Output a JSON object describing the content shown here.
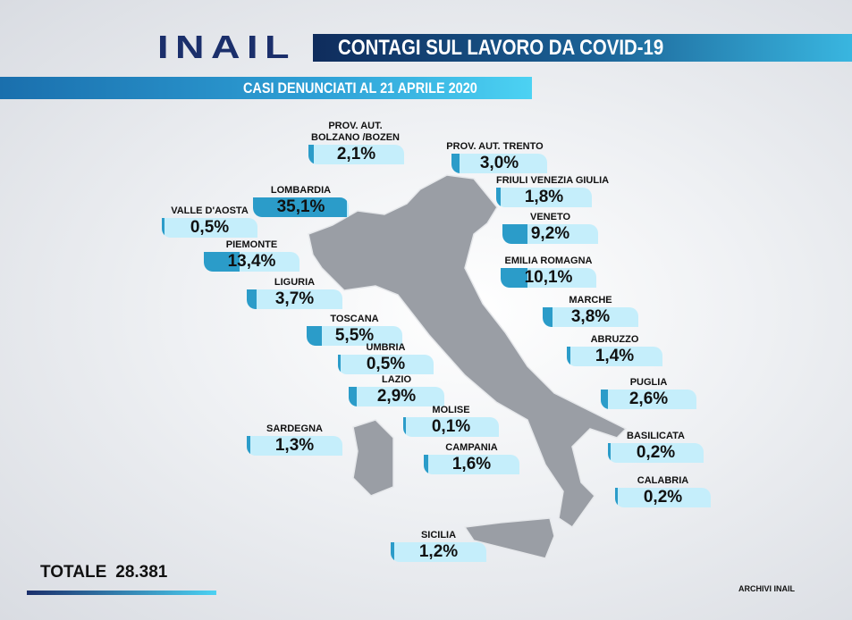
{
  "header": {
    "logo": "INAIL",
    "title": "CONTAGI SUL LAVORO DA COVID-19",
    "subtitle": "CASI DENUNCIATI AL 21 APRILE 2020"
  },
  "colors": {
    "pill": "#c5eefb",
    "pill_fill": "#2b9cc9",
    "title_dark": "#0f2c5c",
    "title_light": "#39b6e0",
    "map": "#9a9ea5"
  },
  "regions": [
    {
      "name": "PROV. AUT. BOLZANO /BOZEN",
      "value": "2,1%",
      "pct": 2.1
    },
    {
      "name": "PROV. AUT. TRENTO",
      "value": "3,0%",
      "pct": 3.0
    },
    {
      "name": "FRIULI VENEZIA GIULIA",
      "value": "1,8%",
      "pct": 1.8
    },
    {
      "name": "LOMBARDIA",
      "value": "35,1%",
      "pct": 35.1
    },
    {
      "name": "VALLE D'AOSTA",
      "value": "0,5%",
      "pct": 0.5
    },
    {
      "name": "VENETO",
      "value": "9,2%",
      "pct": 9.2
    },
    {
      "name": "PIEMONTE",
      "value": "13,4%",
      "pct": 13.4
    },
    {
      "name": "EMILIA ROMAGNA",
      "value": "10,1%",
      "pct": 10.1
    },
    {
      "name": "LIGURIA",
      "value": "3,7%",
      "pct": 3.7
    },
    {
      "name": "MARCHE",
      "value": "3,8%",
      "pct": 3.8
    },
    {
      "name": "TOSCANA",
      "value": "5,5%",
      "pct": 5.5
    },
    {
      "name": "ABRUZZO",
      "value": "1,4%",
      "pct": 1.4
    },
    {
      "name": "UMBRIA",
      "value": "0,5%",
      "pct": 0.5
    },
    {
      "name": "LAZIO",
      "value": "2,9%",
      "pct": 2.9
    },
    {
      "name": "PUGLIA",
      "value": "2,6%",
      "pct": 2.6
    },
    {
      "name": "MOLISE",
      "value": "0,1%",
      "pct": 0.1
    },
    {
      "name": "BASILICATA",
      "value": "0,2%",
      "pct": 0.2
    },
    {
      "name": "SARDEGNA",
      "value": "1,3%",
      "pct": 1.3
    },
    {
      "name": "CAMPANIA",
      "value": "1,6%",
      "pct": 1.6
    },
    {
      "name": "CALABRIA",
      "value": "0,2%",
      "pct": 0.2
    },
    {
      "name": "SICILIA",
      "value": "1,2%",
      "pct": 1.2
    }
  ],
  "footer": {
    "total_label": "TOTALE",
    "total_value": "28.381",
    "credit": "ARCHIVI INAIL"
  }
}
